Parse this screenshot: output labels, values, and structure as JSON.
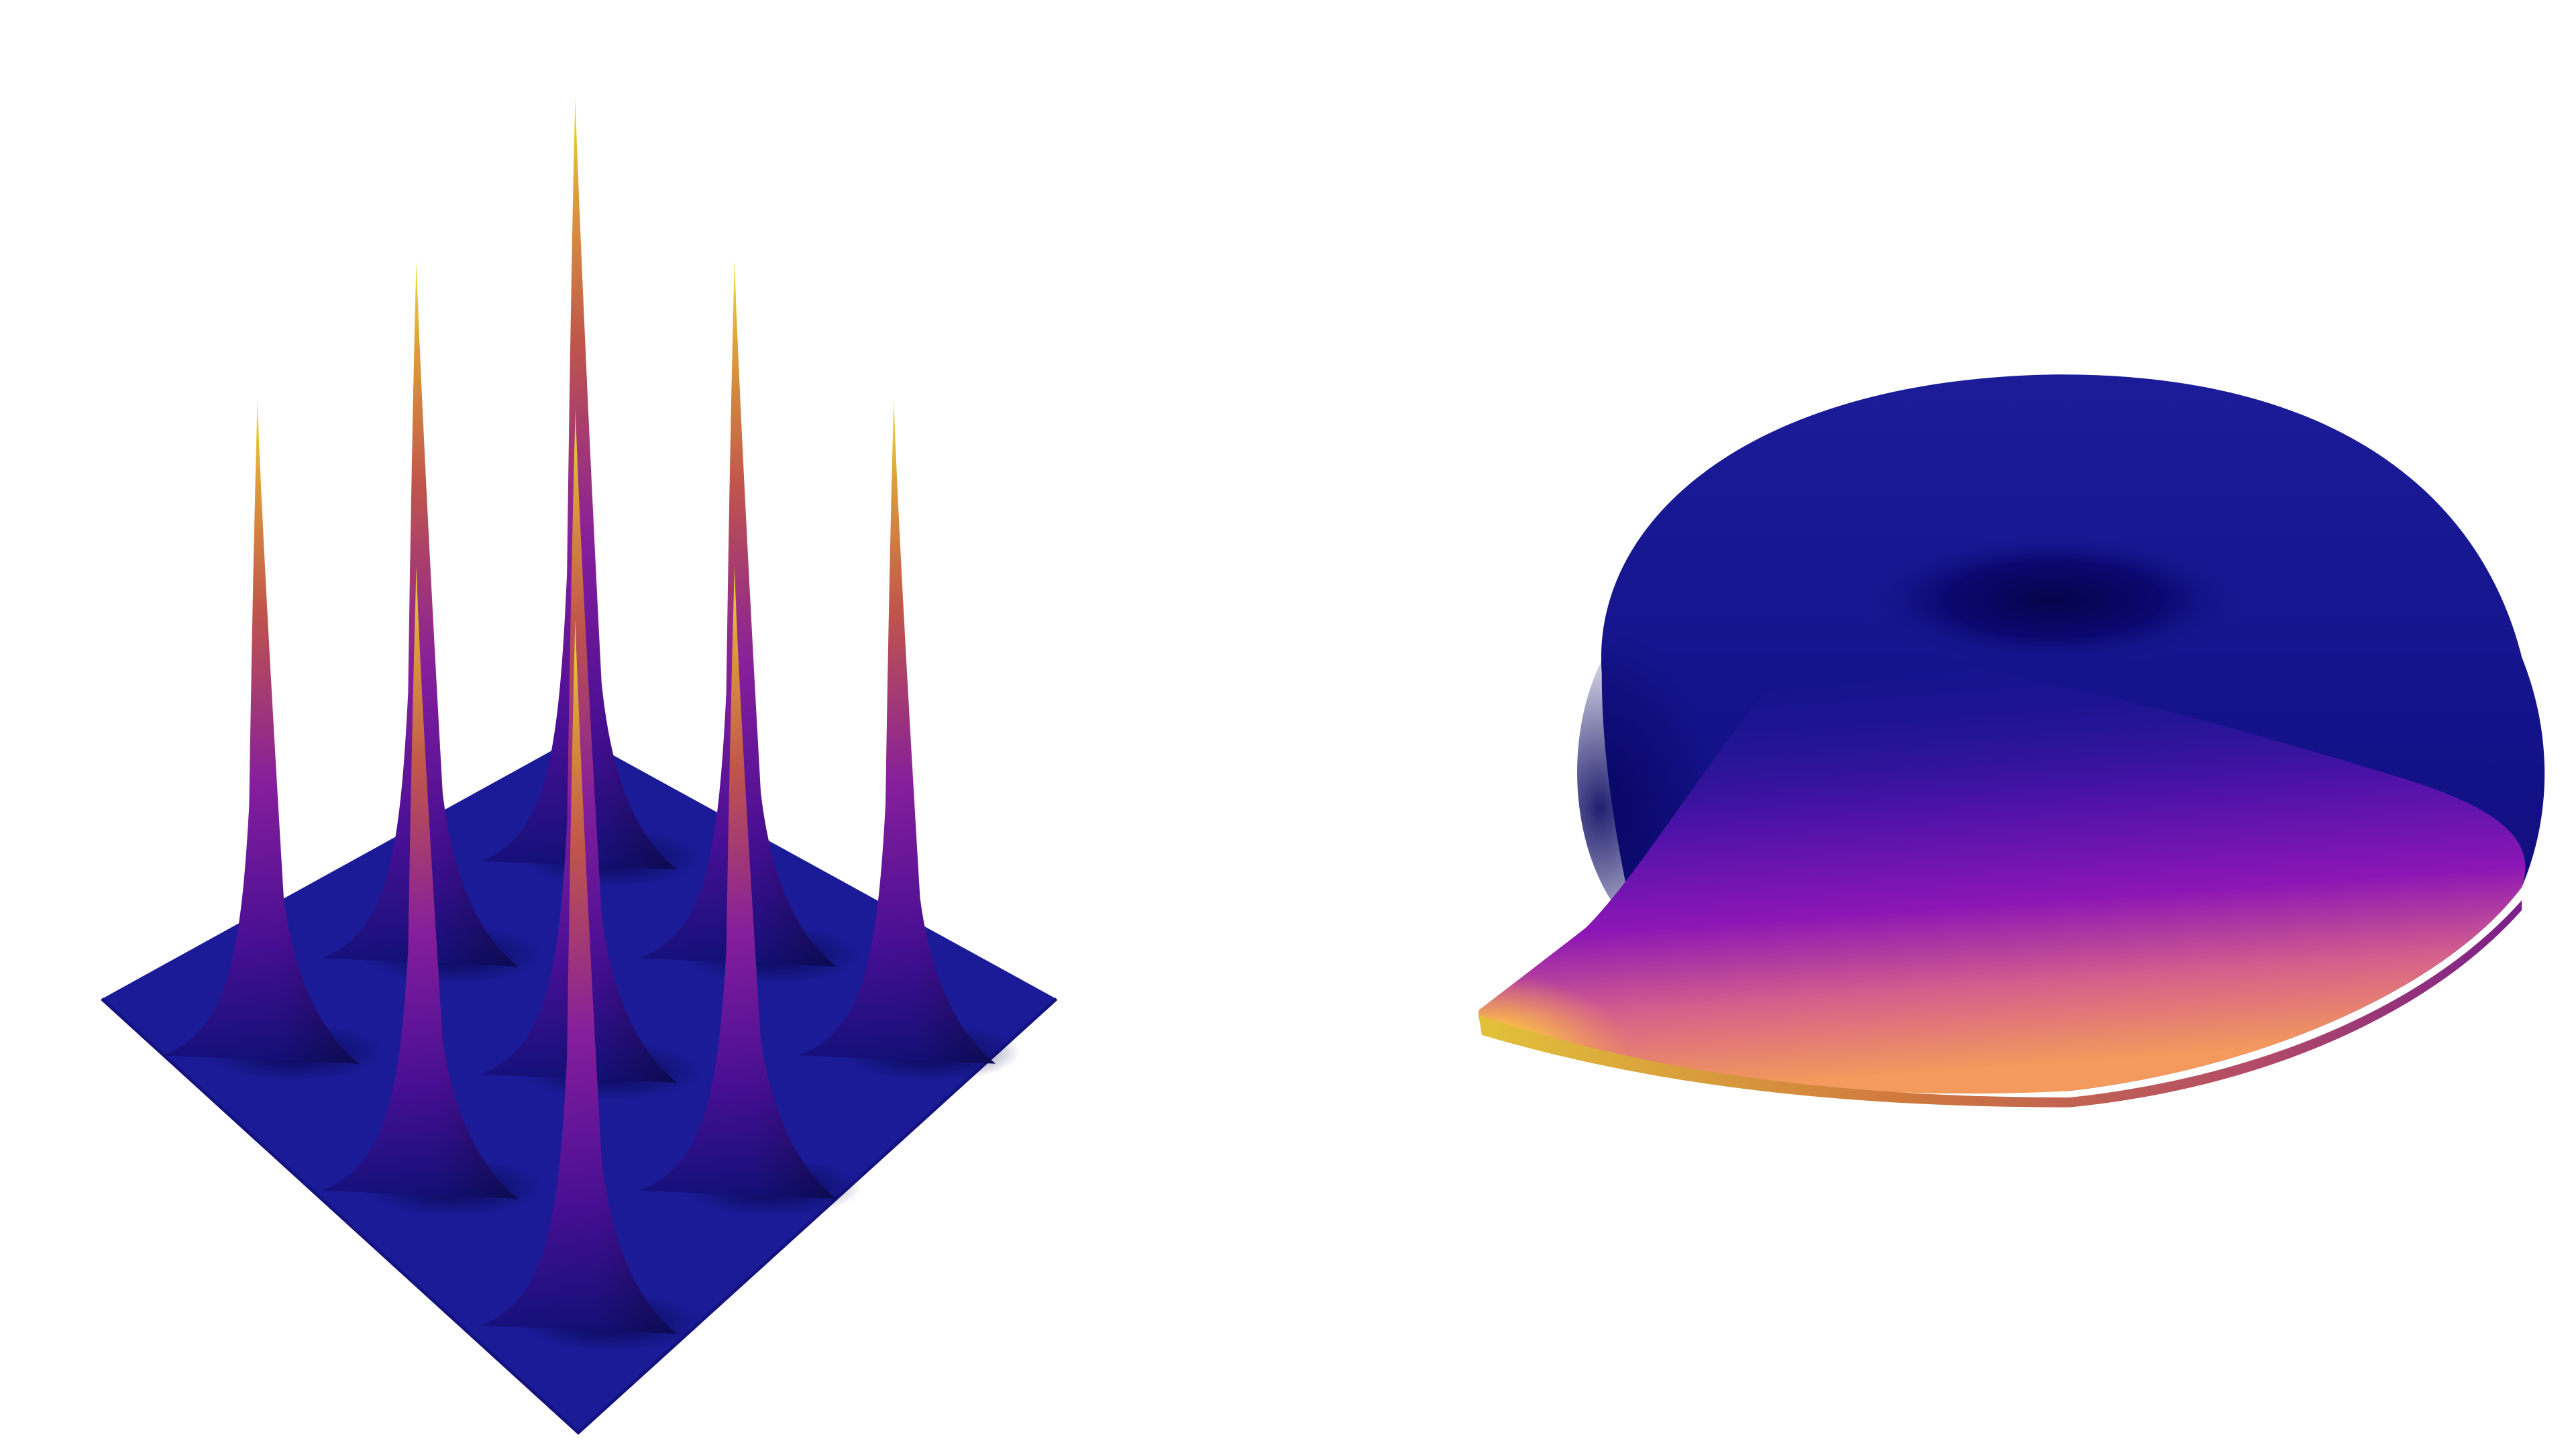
{
  "figure": {
    "panels": [
      {
        "id": "left",
        "kind": "surface-with-peaks",
        "grid": {
          "rows": 3,
          "cols": 3,
          "peak_count": 9
        },
        "colormap": "plasma",
        "colors": {
          "base": "#1b1b98",
          "shade": "#0b0a5c",
          "mid": "#7a12b8",
          "high": "#e08a3a",
          "tip": "#f3e53a"
        }
      },
      {
        "id": "right",
        "kind": "torus-with-sheet",
        "colormap": "plasma",
        "colors": {
          "body": "#1a1a95",
          "dark": "#0a0870",
          "hole": "#060550",
          "purple": "#7d12b5",
          "orange": "#f39a5c",
          "yellow": "#f8f33a"
        }
      }
    ]
  }
}
